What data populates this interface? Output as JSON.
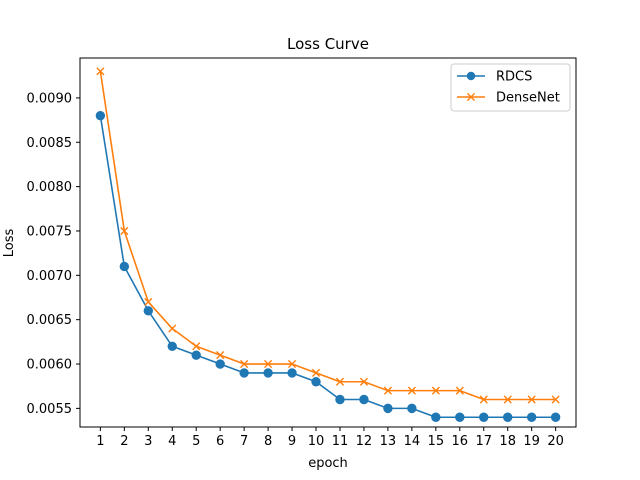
{
  "chart_data": {
    "type": "line",
    "title": "Loss Curve",
    "xlabel": "epoch",
    "ylabel": "Loss",
    "x": [
      1,
      2,
      3,
      4,
      5,
      6,
      7,
      8,
      9,
      10,
      11,
      12,
      13,
      14,
      15,
      16,
      17,
      18,
      19,
      20
    ],
    "xlim": [
      0.15,
      20.85
    ],
    "ylim": [
      0.00529,
      0.00945
    ],
    "yticks": [
      0.0055,
      0.006,
      0.0065,
      0.007,
      0.0075,
      0.008,
      0.0085,
      0.009
    ],
    "ytick_labels": [
      "0.0055",
      "0.0060",
      "0.0065",
      "0.0070",
      "0.0075",
      "0.0080",
      "0.0085",
      "0.0090"
    ],
    "grid": false,
    "legend": "top-right",
    "series": [
      {
        "name": "RDCS",
        "color": "#1f77b4",
        "marker": "circle",
        "values": [
          0.0088,
          0.0071,
          0.0066,
          0.0062,
          0.0061,
          0.006,
          0.0059,
          0.0059,
          0.0059,
          0.0058,
          0.0056,
          0.0056,
          0.0055,
          0.0055,
          0.0054,
          0.0054,
          0.0054,
          0.0054,
          0.0054,
          0.0054
        ]
      },
      {
        "name": "DenseNet",
        "color": "#ff7f0e",
        "marker": "x",
        "values": [
          0.0093,
          0.0075,
          0.0067,
          0.0064,
          0.0062,
          0.0061,
          0.006,
          0.006,
          0.006,
          0.0059,
          0.0058,
          0.0058,
          0.0057,
          0.0057,
          0.0057,
          0.0057,
          0.0056,
          0.0056,
          0.0056,
          0.0056
        ]
      }
    ]
  }
}
